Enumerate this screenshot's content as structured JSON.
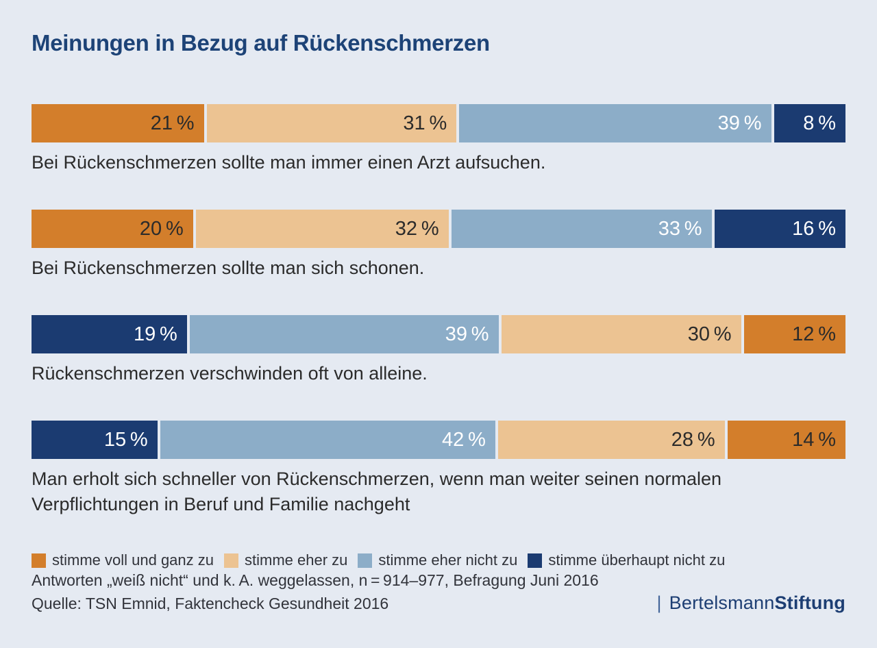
{
  "title": "Meinungen in Bezug auf Rückenschmerzen",
  "colors": {
    "background": "#E5EAF2",
    "title_text": "#1D4377",
    "bar_orange": "#D37E2B",
    "bar_tan": "#ECC392",
    "bar_lightblue": "#8CADC8",
    "bar_darkblue": "#1B3B71",
    "text_dark": "#2B2B2B",
    "text_light": "#FFFFFF",
    "logo_blue": "#1D3E73"
  },
  "chart_data": {
    "type": "bar",
    "variant": "horizontal-stacked",
    "unit": "%",
    "title": "Meinungen in Bezug auf Rückenschmerzen",
    "legend_position": "bottom",
    "legend": [
      {
        "key": "orange",
        "label": "stimme voll und ganz zu"
      },
      {
        "key": "tan",
        "label": "stimme eher zu"
      },
      {
        "key": "lightblue",
        "label": "stimme eher nicht zu"
      },
      {
        "key": "darkblue",
        "label": "stimme überhaupt nicht zu"
      }
    ],
    "rows": [
      {
        "statement": "Bei Rückenschmerzen sollte man immer einen Arzt aufsuchen.",
        "segments": [
          {
            "color": "orange",
            "value": 21,
            "label": "21 %"
          },
          {
            "color": "tan",
            "value": 31,
            "label": "31 %"
          },
          {
            "color": "lightblue",
            "value": 39,
            "label": "39 %"
          },
          {
            "color": "darkblue",
            "value": 8,
            "label": "8 %"
          }
        ]
      },
      {
        "statement": "Bei Rückenschmerzen sollte man sich schonen.",
        "segments": [
          {
            "color": "orange",
            "value": 20,
            "label": "20 %"
          },
          {
            "color": "tan",
            "value": 32,
            "label": "32 %"
          },
          {
            "color": "lightblue",
            "value": 33,
            "label": "33 %"
          },
          {
            "color": "darkblue",
            "value": 16,
            "label": "16 %"
          }
        ]
      },
      {
        "statement": "Rückenschmerzen verschwinden oft von alleine.",
        "segments": [
          {
            "color": "darkblue",
            "value": 19,
            "label": "19 %"
          },
          {
            "color": "lightblue",
            "value": 39,
            "label": "39 %"
          },
          {
            "color": "tan",
            "value": 30,
            "label": "30 %"
          },
          {
            "color": "orange",
            "value": 12,
            "label": "12 %"
          }
        ]
      },
      {
        "statement": "Man erholt sich schneller von Rückenschmerzen, wenn man weiter seinen normalen Verpflichtungen in Beruf und Familie nachgeht",
        "segments": [
          {
            "color": "darkblue",
            "value": 15,
            "label": "15 %"
          },
          {
            "color": "lightblue",
            "value": 42,
            "label": "42 %"
          },
          {
            "color": "tan",
            "value": 28,
            "label": "28 %"
          },
          {
            "color": "orange",
            "value": 14,
            "label": "14 %"
          }
        ]
      }
    ]
  },
  "footnotes": {
    "sample": "Antworten „weiß nicht“ und k. A. weggelassen, n = 914–977, Befragung Juni 2016",
    "source": "Quelle: TSN Emnid, Faktencheck Gesundheit 2016"
  },
  "logo": {
    "separator": "|",
    "name_regular": "Bertelsmann",
    "name_bold": "Stiftung"
  }
}
